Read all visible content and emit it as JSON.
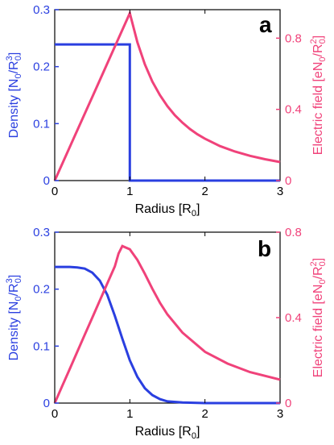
{
  "colors": {
    "density": "#2a3fe0",
    "field": "#f0427a",
    "axis": "#000000"
  },
  "chart_data": [
    {
      "type": "line",
      "panel_label": "a",
      "xlabel": "Radius [R",
      "xlabel_sub": "0",
      "xlabel_end": "]",
      "ylabel_left": "Density [N",
      "ylabel_left_sub": "0",
      "ylabel_left_mid": "/R",
      "ylabel_left_sub2": "0",
      "ylabel_left_sup": "3",
      "ylabel_left_end": "]",
      "ylabel_right": "Electric field [eN",
      "ylabel_right_sub": "0",
      "ylabel_right_mid": "/R",
      "ylabel_right_sub2": "0",
      "ylabel_right_sup": "2",
      "ylabel_right_end": "]",
      "xlim": [
        0,
        3
      ],
      "ylim_left": [
        0,
        0.3
      ],
      "ylim_right": [
        0,
        0.96
      ],
      "xticks": [
        0,
        1,
        2,
        3
      ],
      "xtick_labels": [
        "0",
        "1",
        "2",
        "3"
      ],
      "yticks_left": [
        0,
        0.1,
        0.2,
        0.3
      ],
      "ytick_labels_left": [
        "0",
        "0.1",
        "0.2",
        "0.3"
      ],
      "yticks_right": [
        0,
        0.4,
        0.8
      ],
      "ytick_labels_right": [
        "0",
        "0.4",
        "0.8"
      ],
      "series": [
        {
          "axis": "left",
          "color": "#2a3fe0",
          "points": [
            [
              0,
              0.239
            ],
            [
              1,
              0.239
            ],
            [
              1,
              0.0
            ],
            [
              3,
              0.0
            ]
          ]
        },
        {
          "axis": "right",
          "color": "#f0427a",
          "points": [
            [
              0,
              0.0
            ],
            [
              0.25,
              0.235
            ],
            [
              0.5,
              0.47
            ],
            [
              0.75,
              0.705
            ],
            [
              1.0,
              0.94
            ],
            [
              1.1,
              0.777
            ],
            [
              1.2,
              0.653
            ],
            [
              1.3,
              0.556
            ],
            [
              1.4,
              0.48
            ],
            [
              1.5,
              0.418
            ],
            [
              1.6,
              0.367
            ],
            [
              1.7,
              0.325
            ],
            [
              1.8,
              0.29
            ],
            [
              1.9,
              0.26
            ],
            [
              2.0,
              0.235
            ],
            [
              2.2,
              0.194
            ],
            [
              2.4,
              0.163
            ],
            [
              2.6,
              0.139
            ],
            [
              2.8,
              0.12
            ],
            [
              3.0,
              0.104
            ]
          ]
        }
      ]
    },
    {
      "type": "line",
      "panel_label": "b",
      "xlabel": "Radius [R",
      "xlabel_sub": "0",
      "xlabel_end": "]",
      "ylabel_left": "Density [N",
      "ylabel_left_sub": "0",
      "ylabel_left_mid": "/R",
      "ylabel_left_sub2": "0",
      "ylabel_left_sup": "3",
      "ylabel_left_end": "]",
      "ylabel_right": "Electric field [eN",
      "ylabel_right_sub": "0",
      "ylabel_right_mid": "/R",
      "ylabel_right_sub2": "0",
      "ylabel_right_sup": "2",
      "ylabel_right_end": "]",
      "xlim": [
        0,
        3
      ],
      "ylim_left": [
        0,
        0.3
      ],
      "ylim_right": [
        0,
        0.8
      ],
      "xticks": [
        0,
        1,
        2,
        3
      ],
      "xtick_labels": [
        "0",
        "1",
        "2",
        "3"
      ],
      "yticks_left": [
        0,
        0.1,
        0.2,
        0.3
      ],
      "ytick_labels_left": [
        "0",
        "0.1",
        "0.2",
        "0.3"
      ],
      "yticks_right": [
        0,
        0.4,
        0.8
      ],
      "ytick_labels_right": [
        "0",
        "0.4",
        "0.8"
      ],
      "series": [
        {
          "axis": "left",
          "color": "#2a3fe0",
          "points": [
            [
              0,
              0.239
            ],
            [
              0.1,
              0.239
            ],
            [
              0.2,
              0.239
            ],
            [
              0.3,
              0.238
            ],
            [
              0.4,
              0.236
            ],
            [
              0.5,
              0.229
            ],
            [
              0.6,
              0.215
            ],
            [
              0.7,
              0.19
            ],
            [
              0.8,
              0.153
            ],
            [
              0.9,
              0.113
            ],
            [
              1.0,
              0.075
            ],
            [
              1.1,
              0.046
            ],
            [
              1.2,
              0.026
            ],
            [
              1.3,
              0.014
            ],
            [
              1.4,
              0.007
            ],
            [
              1.5,
              0.003
            ],
            [
              1.7,
              0.001
            ],
            [
              2.0,
              0.0
            ],
            [
              3.0,
              0.0
            ]
          ]
        },
        {
          "axis": "right",
          "color": "#f0427a",
          "points": [
            [
              0,
              0.0
            ],
            [
              0.1,
              0.08
            ],
            [
              0.2,
              0.16
            ],
            [
              0.3,
              0.24
            ],
            [
              0.4,
              0.32
            ],
            [
              0.5,
              0.4
            ],
            [
              0.6,
              0.48
            ],
            [
              0.7,
              0.56
            ],
            [
              0.8,
              0.64
            ],
            [
              0.85,
              0.7
            ],
            [
              0.9,
              0.735
            ],
            [
              1.0,
              0.72
            ],
            [
              1.1,
              0.67
            ],
            [
              1.2,
              0.605
            ],
            [
              1.3,
              0.535
            ],
            [
              1.4,
              0.47
            ],
            [
              1.5,
              0.415
            ],
            [
              1.7,
              0.33
            ],
            [
              2.0,
              0.24
            ],
            [
              2.3,
              0.185
            ],
            [
              2.6,
              0.145
            ],
            [
              3.0,
              0.11
            ]
          ]
        }
      ]
    }
  ]
}
